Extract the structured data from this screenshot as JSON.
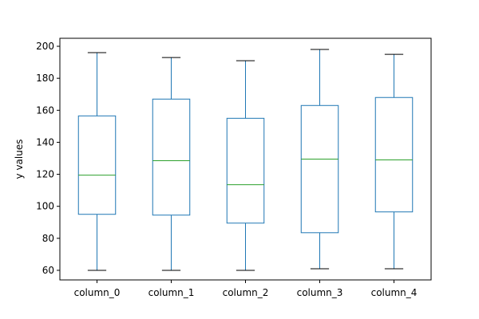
{
  "chart_data": {
    "type": "box",
    "title": "",
    "xlabel": "",
    "ylabel": "y values",
    "ylim": [
      54,
      205
    ],
    "yticks": [
      60,
      80,
      100,
      120,
      140,
      160,
      180,
      200
    ],
    "grid": false,
    "categories": [
      "column_0",
      "column_1",
      "column_2",
      "column_3",
      "column_4"
    ],
    "boxes": [
      {
        "name": "column_0",
        "whisker_low": 60,
        "q1": 95,
        "median": 119.5,
        "q3": 156.5,
        "whisker_high": 196
      },
      {
        "name": "column_1",
        "whisker_low": 60,
        "q1": 94.5,
        "median": 128.5,
        "q3": 167,
        "whisker_high": 193
      },
      {
        "name": "column_2",
        "whisker_low": 60,
        "q1": 89.5,
        "median": 113.5,
        "q3": 155,
        "whisker_high": 191
      },
      {
        "name": "column_3",
        "whisker_low": 61,
        "q1": 83.5,
        "median": 129.5,
        "q3": 163,
        "whisker_high": 198
      },
      {
        "name": "column_4",
        "whisker_low": 61,
        "q1": 96.5,
        "median": 129,
        "q3": 168,
        "whisker_high": 195
      }
    ],
    "colors": {
      "box": "#1f77b4",
      "median": "#2ca02c",
      "whisker": "#1f77b4",
      "cap": "#000000",
      "axes": "#000000"
    }
  }
}
